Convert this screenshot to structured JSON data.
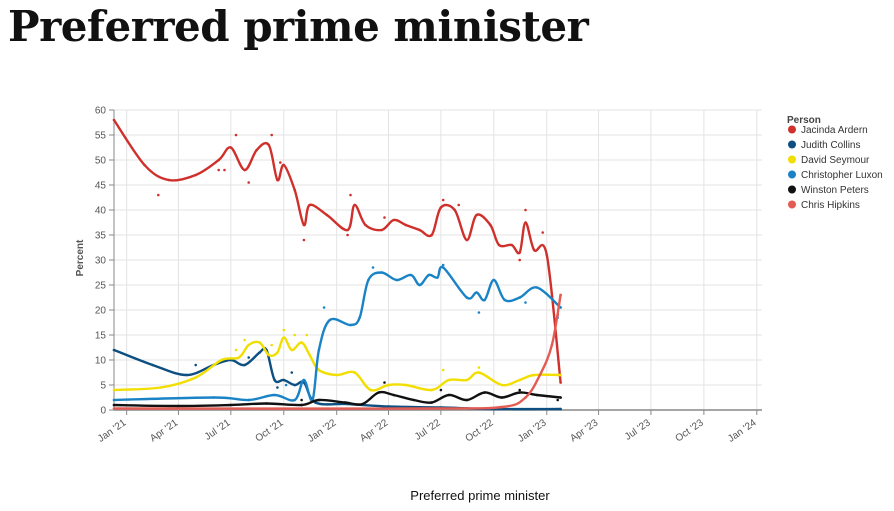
{
  "page": {
    "title": "Preferred prime minister",
    "caption": "Preferred prime minister"
  },
  "chart_data": {
    "type": "line",
    "title": "Preferred prime minister",
    "xlabel": "",
    "ylabel": "Percent",
    "ylim": [
      0,
      60
    ],
    "xlim": [
      "2020-12-10",
      "2024-01-10"
    ],
    "y_ticks": [
      0,
      5,
      10,
      15,
      20,
      25,
      30,
      35,
      40,
      45,
      50,
      55,
      60
    ],
    "x_ticks": [
      {
        "date": "2021-01-01",
        "label": "Jan '21"
      },
      {
        "date": "2021-04-01",
        "label": "Apr '21"
      },
      {
        "date": "2021-07-01",
        "label": "Jul '21"
      },
      {
        "date": "2021-10-01",
        "label": "Oct '21"
      },
      {
        "date": "2022-01-01",
        "label": "Jan '22"
      },
      {
        "date": "2022-04-01",
        "label": "Apr '22"
      },
      {
        "date": "2022-07-01",
        "label": "Jul '22"
      },
      {
        "date": "2022-10-01",
        "label": "Oct '22"
      },
      {
        "date": "2023-01-01",
        "label": "Jan '23"
      },
      {
        "date": "2023-04-01",
        "label": "Apr '23"
      },
      {
        "date": "2023-07-01",
        "label": "Jul '23"
      },
      {
        "date": "2023-10-01",
        "label": "Oct '23"
      },
      {
        "date": "2024-01-01",
        "label": "Jan '24"
      }
    ],
    "grid": true,
    "legend": {
      "title": "Person",
      "position": "right"
    },
    "series": [
      {
        "name": "Jacinda Ardern",
        "color": "#d0302b",
        "points": [
          [
            "2020-12-10",
            58
          ],
          [
            "2021-02-01",
            49
          ],
          [
            "2021-03-15",
            46
          ],
          [
            "2021-05-01",
            47
          ],
          [
            "2021-06-10",
            50
          ],
          [
            "2021-07-01",
            52.5
          ],
          [
            "2021-07-25",
            48
          ],
          [
            "2021-08-15",
            52
          ],
          [
            "2021-09-05",
            53
          ],
          [
            "2021-09-20",
            46
          ],
          [
            "2021-10-01",
            49
          ],
          [
            "2021-10-20",
            44
          ],
          [
            "2021-11-05",
            37
          ],
          [
            "2021-11-15",
            41
          ],
          [
            "2021-12-15",
            39
          ],
          [
            "2022-01-20",
            36
          ],
          [
            "2022-02-01",
            41
          ],
          [
            "2022-02-20",
            37
          ],
          [
            "2022-03-20",
            36
          ],
          [
            "2022-04-10",
            38
          ],
          [
            "2022-05-01",
            37
          ],
          [
            "2022-05-25",
            36
          ],
          [
            "2022-06-15",
            35
          ],
          [
            "2022-07-01",
            40.5
          ],
          [
            "2022-07-25",
            40
          ],
          [
            "2022-08-15",
            34
          ],
          [
            "2022-09-01",
            39
          ],
          [
            "2022-09-25",
            37
          ],
          [
            "2022-10-10",
            33
          ],
          [
            "2022-11-01",
            33
          ],
          [
            "2022-11-15",
            31.5
          ],
          [
            "2022-11-25",
            37.5
          ],
          [
            "2022-12-10",
            32
          ],
          [
            "2023-01-01",
            31
          ],
          [
            "2023-01-25",
            5.5
          ]
        ],
        "dots": [
          [
            "2021-02-25",
            43
          ],
          [
            "2021-06-10",
            48
          ],
          [
            "2021-06-20",
            48
          ],
          [
            "2021-07-10",
            55
          ],
          [
            "2021-08-01",
            45.5
          ],
          [
            "2021-09-10",
            55
          ],
          [
            "2021-09-25",
            49.5
          ],
          [
            "2021-11-05",
            34
          ],
          [
            "2022-01-20",
            35
          ],
          [
            "2022-01-25",
            43
          ],
          [
            "2022-03-25",
            38.5
          ],
          [
            "2022-07-05",
            42
          ],
          [
            "2022-08-01",
            41
          ],
          [
            "2022-11-25",
            40
          ],
          [
            "2022-11-15",
            30
          ],
          [
            "2022-12-25",
            35.5
          ],
          [
            "2023-01-20",
            19
          ]
        ]
      },
      {
        "name": "Judith Collins",
        "color": "#0e4f82",
        "points": [
          [
            "2020-12-10",
            12
          ],
          [
            "2021-02-15",
            9
          ],
          [
            "2021-04-15",
            7
          ],
          [
            "2021-06-01",
            9
          ],
          [
            "2021-07-01",
            10
          ],
          [
            "2021-07-25",
            9
          ],
          [
            "2021-08-20",
            11.5
          ],
          [
            "2021-09-01",
            12
          ],
          [
            "2021-09-15",
            6
          ],
          [
            "2021-10-01",
            6
          ],
          [
            "2021-10-20",
            5
          ],
          [
            "2021-11-05",
            5.5
          ],
          [
            "2021-11-25",
            1.5
          ],
          [
            "2022-01-20",
            1.2
          ],
          [
            "2022-04-01",
            0.7
          ],
          [
            "2022-07-01",
            0.5
          ],
          [
            "2022-10-01",
            0.2
          ],
          [
            "2023-01-25",
            0.2
          ]
        ],
        "dots": [
          [
            "2021-05-01",
            9
          ],
          [
            "2021-08-01",
            10.5
          ],
          [
            "2021-09-20",
            4.5
          ],
          [
            "2021-10-15",
            7.5
          ]
        ]
      },
      {
        "name": "David Seymour",
        "color": "#f2de00",
        "points": [
          [
            "2020-12-10",
            4
          ],
          [
            "2021-03-01",
            4.5
          ],
          [
            "2021-05-01",
            6.5
          ],
          [
            "2021-06-15",
            10
          ],
          [
            "2021-07-15",
            10.5
          ],
          [
            "2021-08-01",
            13
          ],
          [
            "2021-08-20",
            13.5
          ],
          [
            "2021-09-05",
            11
          ],
          [
            "2021-09-20",
            11.5
          ],
          [
            "2021-10-01",
            14.5
          ],
          [
            "2021-10-15",
            12
          ],
          [
            "2021-11-01",
            13.5
          ],
          [
            "2021-11-15",
            11
          ],
          [
            "2021-12-01",
            8
          ],
          [
            "2022-01-01",
            7
          ],
          [
            "2022-02-01",
            7.5
          ],
          [
            "2022-03-01",
            4
          ],
          [
            "2022-04-01",
            5
          ],
          [
            "2022-05-01",
            5
          ],
          [
            "2022-06-15",
            4
          ],
          [
            "2022-07-15",
            6
          ],
          [
            "2022-08-15",
            6
          ],
          [
            "2022-09-05",
            7.5
          ],
          [
            "2022-10-15",
            5
          ],
          [
            "2022-11-15",
            6
          ],
          [
            "2022-12-10",
            7
          ],
          [
            "2023-01-25",
            7
          ]
        ],
        "dots": [
          [
            "2021-07-10",
            12
          ],
          [
            "2021-07-25",
            14
          ],
          [
            "2021-09-10",
            13
          ],
          [
            "2021-10-01",
            16
          ],
          [
            "2021-10-20",
            15
          ],
          [
            "2021-11-10",
            15
          ],
          [
            "2022-07-05",
            8
          ],
          [
            "2022-09-05",
            8.5
          ]
        ]
      },
      {
        "name": "Christopher Luxon",
        "color": "#1a83c6",
        "points": [
          [
            "2020-12-10",
            2
          ],
          [
            "2021-06-01",
            2.5
          ],
          [
            "2021-08-01",
            2
          ],
          [
            "2021-09-15",
            3
          ],
          [
            "2021-10-20",
            2
          ],
          [
            "2021-11-05",
            6
          ],
          [
            "2021-11-20",
            2
          ],
          [
            "2021-12-01",
            12
          ],
          [
            "2021-12-20",
            18
          ],
          [
            "2022-01-25",
            17
          ],
          [
            "2022-02-10",
            18.5
          ],
          [
            "2022-02-25",
            26
          ],
          [
            "2022-03-20",
            27.5
          ],
          [
            "2022-04-15",
            26
          ],
          [
            "2022-05-10",
            27
          ],
          [
            "2022-05-25",
            25
          ],
          [
            "2022-06-10",
            27
          ],
          [
            "2022-06-25",
            26.5
          ],
          [
            "2022-07-05",
            28.5
          ],
          [
            "2022-08-15",
            22.5
          ],
          [
            "2022-09-01",
            23.5
          ],
          [
            "2022-09-15",
            22
          ],
          [
            "2022-10-01",
            26
          ],
          [
            "2022-10-20",
            22
          ],
          [
            "2022-11-15",
            22.5
          ],
          [
            "2022-12-15",
            24.5
          ],
          [
            "2023-01-25",
            20.5
          ]
        ],
        "dots": [
          [
            "2021-10-05",
            5
          ],
          [
            "2021-12-10",
            20.5
          ],
          [
            "2022-03-05",
            28.5
          ],
          [
            "2022-07-05",
            29
          ],
          [
            "2022-09-05",
            19.5
          ],
          [
            "2022-11-25",
            21.5
          ],
          [
            "2023-01-20",
            18.5
          ]
        ]
      },
      {
        "name": "Winston Peters",
        "color": "#111111",
        "points": [
          [
            "2020-12-10",
            1
          ],
          [
            "2021-04-01",
            0.8
          ],
          [
            "2021-07-01",
            1
          ],
          [
            "2021-09-01",
            1.3
          ],
          [
            "2021-11-01",
            1
          ],
          [
            "2021-12-01",
            2
          ],
          [
            "2022-01-15",
            1.5
          ],
          [
            "2022-02-15",
            1.2
          ],
          [
            "2022-03-15",
            3.5
          ],
          [
            "2022-04-10",
            3
          ],
          [
            "2022-05-15",
            2
          ],
          [
            "2022-06-15",
            1.5
          ],
          [
            "2022-07-15",
            3
          ],
          [
            "2022-08-15",
            2
          ],
          [
            "2022-09-15",
            3.5
          ],
          [
            "2022-10-15",
            2.5
          ],
          [
            "2022-11-15",
            3.5
          ],
          [
            "2022-12-15",
            3
          ],
          [
            "2023-01-25",
            2.5
          ]
        ],
        "dots": [
          [
            "2021-11-01",
            2
          ],
          [
            "2022-03-25",
            5.5
          ],
          [
            "2022-07-01",
            4
          ],
          [
            "2022-11-15",
            4
          ],
          [
            "2023-01-20",
            2
          ]
        ]
      },
      {
        "name": "Chris Hipkins",
        "color": "#e45b53",
        "points": [
          [
            "2020-12-10",
            0.3
          ],
          [
            "2022-06-01",
            0.3
          ],
          [
            "2022-10-15",
            0.6
          ],
          [
            "2022-11-25",
            2.5
          ],
          [
            "2022-12-20",
            7
          ],
          [
            "2023-01-10",
            13
          ],
          [
            "2023-01-25",
            23
          ]
        ],
        "dots": [
          [
            "2023-01-25",
            23
          ]
        ]
      }
    ]
  }
}
